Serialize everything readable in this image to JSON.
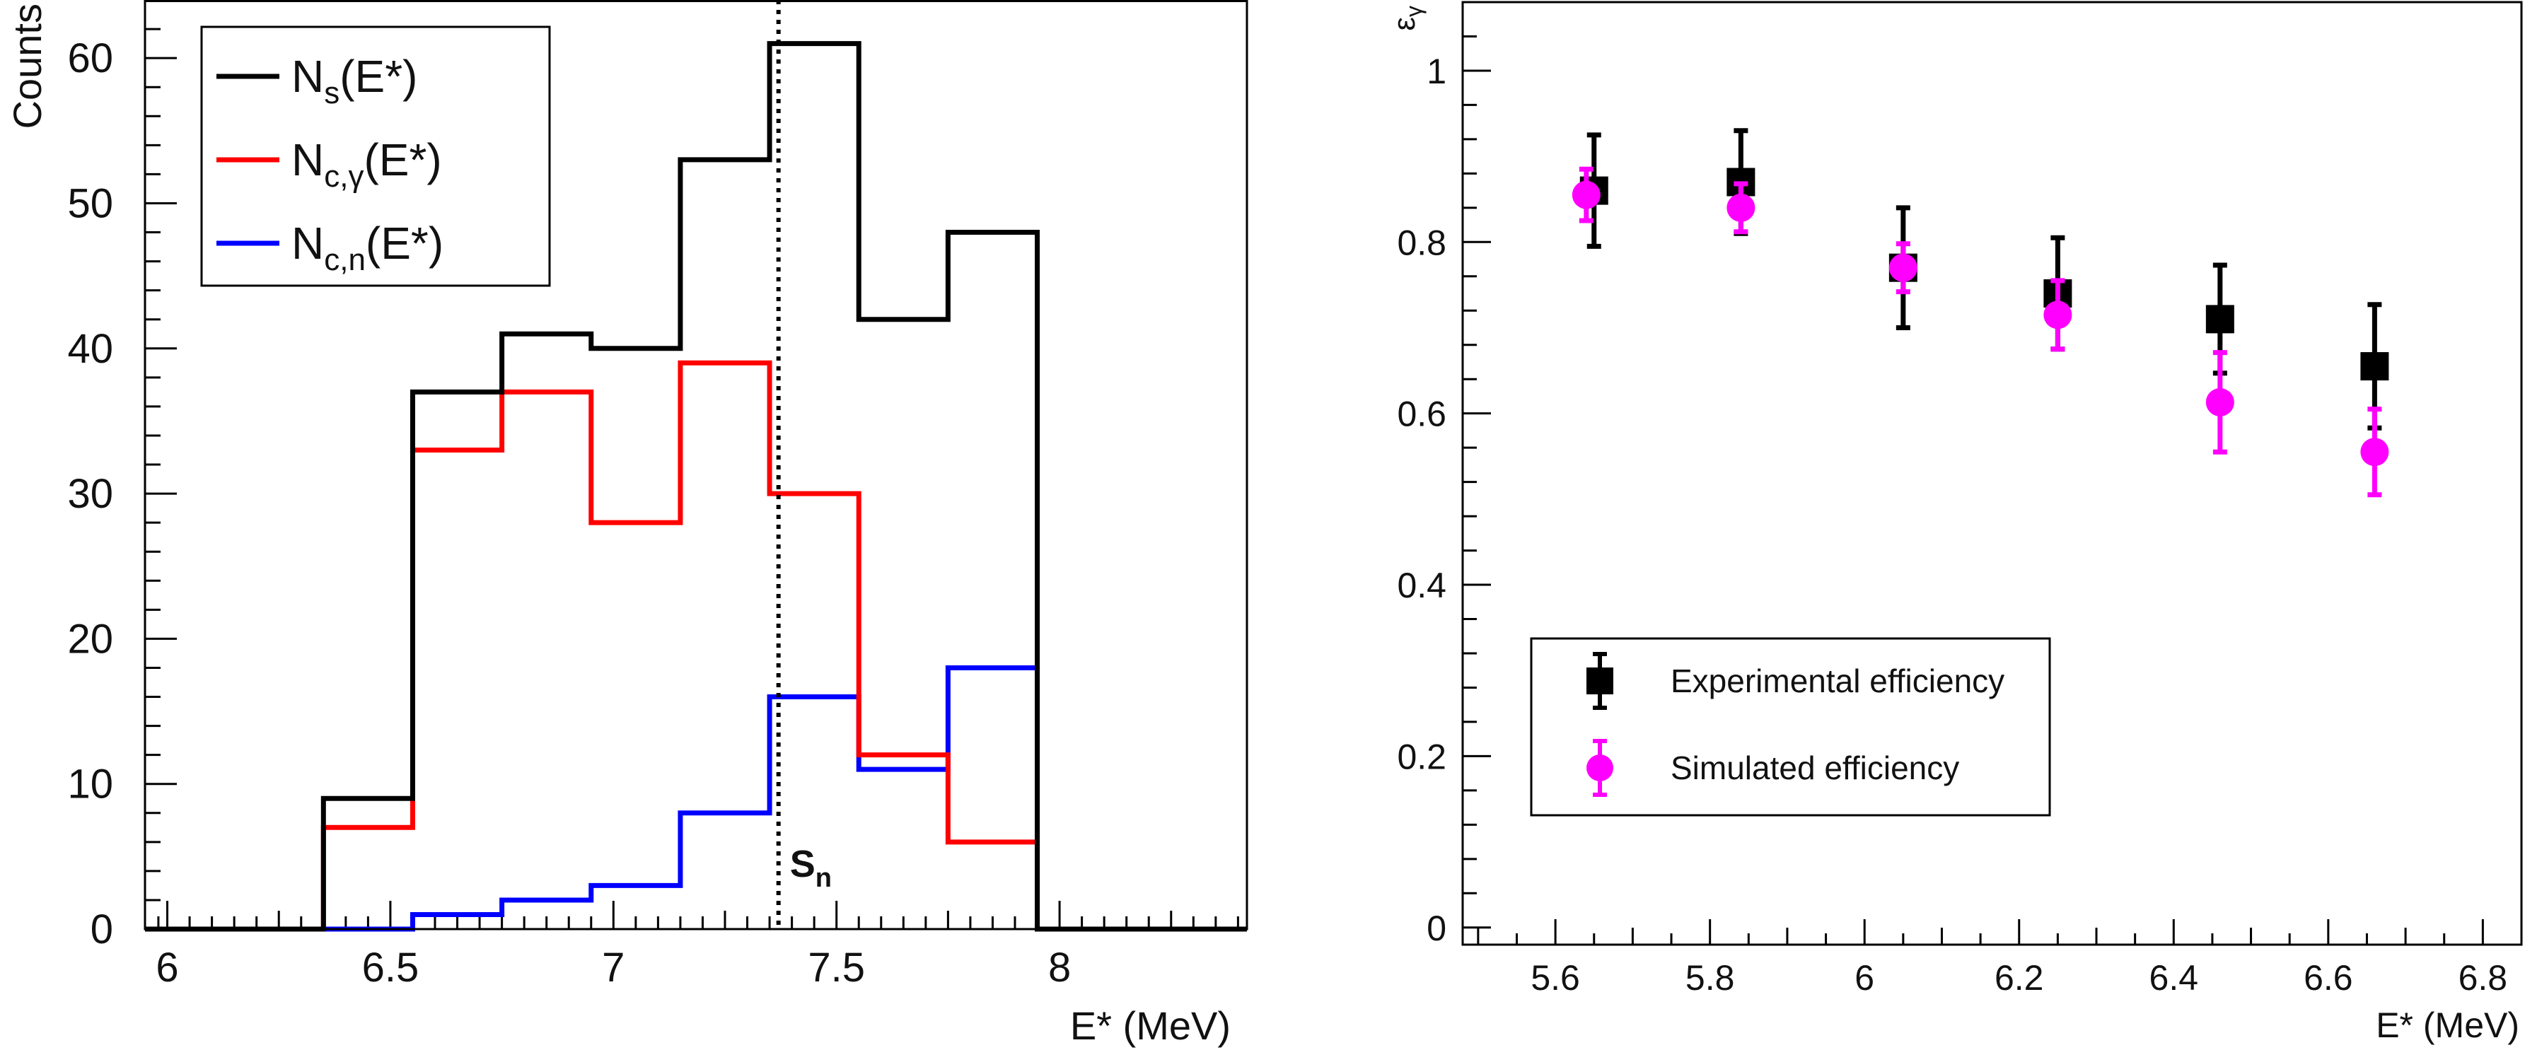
{
  "chart_data": [
    {
      "type": "line",
      "step": true,
      "xlabel": "E* (MeV)",
      "ylabel": "Counts",
      "xlim": [
        5.95,
        8.42
      ],
      "ylim": [
        0,
        64
      ],
      "xticks": [
        "6",
        "6.5",
        "7",
        "7.5",
        "8"
      ],
      "yticks": [
        "0",
        "10",
        "20",
        "30",
        "40",
        "50",
        "60"
      ],
      "bin_edges": [
        6.35,
        6.55,
        6.75,
        6.95,
        7.15,
        7.35,
        7.55,
        7.75,
        7.95
      ],
      "series": [
        {
          "name_main": "N",
          "name_sub": "s",
          "name_tail": "(E*)",
          "color": "#000000",
          "values": [
            9,
            37,
            41,
            40,
            53,
            61,
            42,
            48
          ]
        },
        {
          "name_main": "N",
          "name_sub": "c,γ",
          "name_tail": "(E*)",
          "color": "#ff0000",
          "values": [
            7,
            33,
            37,
            28,
            39,
            30,
            12,
            6
          ]
        },
        {
          "name_main": "N",
          "name_sub": "c,n",
          "name_tail": "(E*)",
          "color": "#0000ff",
          "values": [
            0,
            1,
            2,
            3,
            8,
            16,
            11,
            18
          ]
        }
      ],
      "annotations": [
        {
          "text_main": "S",
          "text_sub": "n",
          "x": 7.37,
          "style": "dotted vertical line"
        }
      ],
      "legend_position": "top-left",
      "grid": false
    },
    {
      "type": "scatter",
      "xlabel": "E* (MeV)",
      "ylabel_main": "ε",
      "ylabel_sub": "γ",
      "xlim": [
        5.48,
        6.85
      ],
      "ylim": [
        -0.02,
        1.08
      ],
      "xticks": [
        "5.6",
        "5.8",
        "6",
        "6.2",
        "6.4",
        "6.6",
        "6.8"
      ],
      "yticks": [
        "0",
        "0.2",
        "0.4",
        "0.6",
        "0.8",
        "1"
      ],
      "series": [
        {
          "name": "Experimental efficiency",
          "color": "#000000",
          "marker": "square",
          "x": [
            5.65,
            5.84,
            6.05,
            6.25,
            6.46,
            6.66
          ],
          "y": [
            0.86,
            0.87,
            0.77,
            0.74,
            0.71,
            0.655
          ],
          "err": [
            0.065,
            0.06,
            0.07,
            0.065,
            0.063,
            0.072
          ]
        },
        {
          "name": "Simulated efficiency",
          "color": "#ff00ff",
          "marker": "circle",
          "x": [
            5.64,
            5.84,
            6.05,
            6.25,
            6.46,
            6.66
          ],
          "y": [
            0.855,
            0.84,
            0.77,
            0.715,
            0.613,
            0.555
          ],
          "err": [
            0.03,
            0.028,
            0.028,
            0.04,
            0.058,
            0.05
          ]
        }
      ],
      "legend_position": "bottom-left",
      "grid": false
    }
  ]
}
